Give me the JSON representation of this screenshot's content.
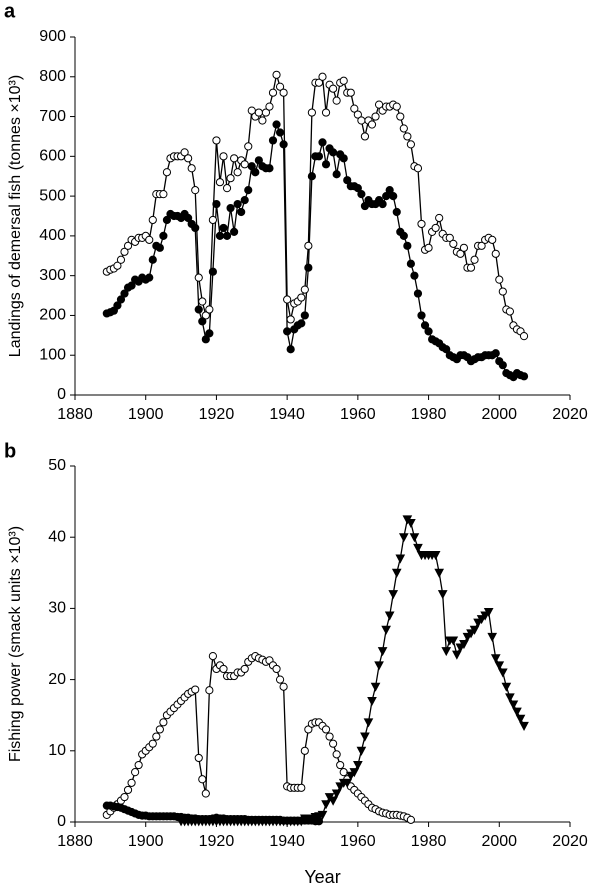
{
  "chart_data": [
    {
      "type": "line",
      "label": "a",
      "ylabel": "Landings of demersal fish (tonnes ×10³)",
      "xlim": [
        1880,
        2020
      ],
      "xticks": [
        1880,
        1900,
        1920,
        1940,
        1960,
        1980,
        2000,
        2020
      ],
      "ylim": [
        0,
        900
      ],
      "yticks": [
        0,
        100,
        200,
        300,
        400,
        500,
        600,
        700,
        800,
        900
      ],
      "x": [
        1889,
        1890,
        1891,
        1892,
        1893,
        1894,
        1895,
        1896,
        1897,
        1898,
        1899,
        1900,
        1901,
        1902,
        1903,
        1904,
        1905,
        1906,
        1907,
        1908,
        1909,
        1910,
        1911,
        1912,
        1913,
        1914,
        1915,
        1916,
        1917,
        1918,
        1919,
        1920,
        1921,
        1922,
        1923,
        1924,
        1925,
        1926,
        1927,
        1928,
        1929,
        1930,
        1931,
        1932,
        1933,
        1934,
        1935,
        1936,
        1937,
        1938,
        1939,
        1940,
        1941,
        1942,
        1943,
        1944,
        1945,
        1946,
        1947,
        1948,
        1949,
        1950,
        1951,
        1952,
        1953,
        1954,
        1955,
        1956,
        1957,
        1958,
        1959,
        1960,
        1961,
        1962,
        1963,
        1964,
        1965,
        1966,
        1967,
        1968,
        1969,
        1970,
        1971,
        1972,
        1973,
        1974,
        1975,
        1976,
        1977,
        1978,
        1979,
        1980,
        1981,
        1982,
        1983,
        1984,
        1985,
        1986,
        1987,
        1988,
        1989,
        1990,
        1991,
        1992,
        1993,
        1994,
        1995,
        1996,
        1997,
        1998,
        1999,
        2000,
        2001,
        2002,
        2003,
        2004,
        2005,
        2006,
        2007
      ],
      "series": [
        {
          "marker": "circle-open",
          "color": "#000000",
          "values": [
            310,
            315,
            318,
            325,
            340,
            360,
            375,
            390,
            385,
            395,
            395,
            400,
            390,
            440,
            505,
            505,
            505,
            560,
            595,
            600,
            600,
            600,
            610,
            595,
            570,
            515,
            295,
            235,
            200,
            215,
            440,
            640,
            535,
            600,
            520,
            545,
            595,
            560,
            590,
            580,
            625,
            715,
            700,
            710,
            690,
            710,
            725,
            760,
            805,
            775,
            760,
            240,
            190,
            230,
            235,
            245,
            265,
            375,
            710,
            785,
            785,
            800,
            710,
            780,
            770,
            740,
            785,
            790,
            760,
            760,
            720,
            705,
            690,
            650,
            690,
            680,
            700,
            730,
            715,
            725,
            725,
            730,
            725,
            700,
            670,
            650,
            630,
            575,
            570,
            430,
            365,
            370,
            410,
            420,
            445,
            405,
            395,
            395,
            380,
            360,
            355,
            370,
            320,
            320,
            340,
            375,
            375,
            390,
            395,
            390,
            355,
            290,
            260,
            215,
            210,
            175,
            165,
            160,
            148
          ]
        },
        {
          "marker": "circle",
          "color": "#000000",
          "values": [
            205,
            208,
            212,
            225,
            240,
            255,
            270,
            275,
            290,
            285,
            295,
            290,
            295,
            340,
            375,
            370,
            400,
            440,
            455,
            450,
            450,
            445,
            455,
            445,
            430,
            420,
            215,
            185,
            140,
            155,
            310,
            480,
            400,
            420,
            400,
            470,
            410,
            480,
            460,
            490,
            515,
            575,
            560,
            590,
            575,
            570,
            570,
            640,
            680,
            660,
            630,
            160,
            115,
            165,
            175,
            180,
            200,
            320,
            550,
            600,
            600,
            635,
            580,
            620,
            610,
            555,
            605,
            595,
            540,
            525,
            525,
            520,
            505,
            475,
            490,
            480,
            480,
            490,
            480,
            500,
            515,
            500,
            460,
            410,
            400,
            375,
            330,
            300,
            255,
            200,
            175,
            160,
            140,
            135,
            130,
            120,
            115,
            100,
            95,
            90,
            100,
            100,
            95,
            85,
            90,
            95,
            95,
            100,
            100,
            100,
            105,
            85,
            75,
            55,
            50,
            45,
            55,
            50,
            47
          ]
        }
      ]
    },
    {
      "type": "line",
      "label": "b",
      "ylabel": "Fishing power (smack units ×10³)",
      "xlabel": "Year",
      "xlim": [
        1880,
        2020
      ],
      "xticks": [
        1880,
        1900,
        1920,
        1940,
        1960,
        1980,
        2000,
        2020
      ],
      "ylim": [
        0,
        50
      ],
      "yticks": [
        0,
        10,
        20,
        30,
        40,
        50
      ],
      "x": [
        1889,
        1890,
        1891,
        1892,
        1893,
        1894,
        1895,
        1896,
        1897,
        1898,
        1899,
        1900,
        1901,
        1902,
        1903,
        1904,
        1905,
        1906,
        1907,
        1908,
        1909,
        1910,
        1911,
        1912,
        1913,
        1914,
        1915,
        1916,
        1917,
        1918,
        1919,
        1920,
        1921,
        1922,
        1923,
        1924,
        1925,
        1926,
        1927,
        1928,
        1929,
        1930,
        1931,
        1932,
        1933,
        1934,
        1935,
        1936,
        1937,
        1938,
        1939,
        1940,
        1941,
        1942,
        1943,
        1944,
        1945,
        1946,
        1947,
        1948,
        1949,
        1950,
        1951,
        1952,
        1953,
        1954,
        1955,
        1956,
        1957,
        1958,
        1959,
        1960,
        1961,
        1962,
        1963,
        1964,
        1965,
        1966,
        1967,
        1968,
        1969,
        1970,
        1971,
        1972,
        1973,
        1974,
        1975,
        1976,
        1977,
        1978,
        1979,
        1980,
        1981,
        1982,
        1983,
        1984,
        1985,
        1986,
        1987,
        1988,
        1989,
        1990,
        1991,
        1992,
        1993,
        1994,
        1995,
        1996,
        1997,
        1998,
        1999,
        2000,
        2001,
        2002,
        2003,
        2004,
        2005,
        2006,
        2007
      ],
      "series": [
        {
          "marker": "circle-open",
          "color": "#000000",
          "values": [
            1,
            1.5,
            2,
            2.5,
            3,
            3.5,
            4.5,
            5.5,
            7,
            8,
            9.5,
            10,
            10.5,
            11,
            12,
            13,
            14,
            15,
            15.5,
            16,
            16.5,
            17,
            17.5,
            18,
            18.3,
            18.6,
            9,
            6,
            4,
            18.5,
            23.3,
            21.5,
            22,
            21.5,
            20.5,
            20.5,
            20.5,
            21,
            21,
            21.5,
            22.5,
            23,
            23.3,
            23,
            22.8,
            22.5,
            22.7,
            22,
            21.5,
            20,
            19,
            5,
            4.8,
            4.8,
            4.8,
            4.8,
            10,
            13,
            13.8,
            14,
            14,
            13.5,
            13,
            12,
            11,
            9.5,
            8,
            7,
            6,
            5,
            4.5,
            4,
            3.5,
            3,
            2.5,
            2,
            1.8,
            1.5,
            1.3,
            1.2,
            1,
            1,
            1,
            0.9,
            0.8,
            0.6,
            0.3,
            null,
            null,
            null,
            null,
            null,
            null,
            null,
            null,
            null,
            null,
            null,
            null,
            null,
            null,
            null,
            null,
            null,
            null,
            null,
            null,
            null,
            null,
            null,
            null,
            null,
            null,
            null,
            null,
            null,
            null,
            null,
            null
          ]
        },
        {
          "marker": "circle",
          "color": "#000000",
          "values": [
            2.3,
            2.3,
            2.2,
            2.1,
            2.0,
            1.8,
            1.6,
            1.4,
            1.2,
            1.0,
            0.9,
            0.9,
            0.8,
            0.8,
            0.8,
            0.8,
            0.8,
            0.8,
            0.8,
            0.8,
            0.7,
            0.7,
            0.6,
            0.6,
            0.5,
            0.5,
            0.4,
            0.4,
            0.4,
            0.4,
            0.5,
            0.6,
            0.5,
            0.5,
            0.4,
            0.4,
            0.4,
            0.4,
            0.4,
            0.4,
            0.3,
            0.3,
            0.3,
            0.3,
            0.3,
            0.3,
            0.3,
            0.3,
            0.3,
            0.3,
            0.2,
            0.2,
            0.2,
            0.2,
            0.2,
            0.2,
            0.2,
            0.2,
            0.2,
            0.1,
            0.1,
            null,
            null,
            null,
            null,
            null,
            null,
            null,
            null,
            null,
            null,
            null,
            null,
            null,
            null,
            null,
            null,
            null,
            null,
            null,
            null,
            null,
            null,
            null,
            null,
            null,
            null,
            null,
            null,
            null,
            null,
            null,
            null,
            null,
            null,
            null,
            null,
            null,
            null,
            null,
            null,
            null,
            null,
            null,
            null,
            null,
            null,
            null,
            null,
            null,
            null,
            null,
            null,
            null,
            null,
            null,
            null,
            null,
            null
          ]
        },
        {
          "marker": "triangle",
          "color": "#000000",
          "values": [
            null,
            null,
            null,
            null,
            null,
            null,
            null,
            null,
            null,
            null,
            null,
            null,
            null,
            null,
            null,
            null,
            null,
            null,
            null,
            null,
            null,
            0.1,
            0.1,
            0.1,
            0.1,
            0.1,
            0.1,
            0.1,
            0.1,
            0.1,
            0.1,
            0.1,
            0.1,
            0.1,
            0.1,
            0.1,
            0.1,
            0.1,
            0.1,
            0.1,
            0.1,
            0.1,
            0.1,
            0.1,
            0.1,
            0.1,
            0.1,
            0.1,
            0.1,
            0.1,
            0.1,
            0.1,
            0.1,
            0.1,
            0.1,
            0.1,
            0.5,
            0.5,
            0.5,
            0.7,
            0.8,
            1.0,
            2.5,
            3.5,
            3,
            4,
            5,
            5.5,
            5.5,
            6.5,
            7,
            8,
            10,
            12,
            14,
            17,
            19,
            22,
            24,
            27,
            29,
            32,
            35,
            37,
            40,
            42.5,
            42,
            40,
            38.5,
            37.5,
            37.5,
            37.5,
            37.5,
            37.5,
            35,
            32,
            24,
            25.5,
            25.5,
            23.5,
            24.5,
            25,
            26,
            26.5,
            27,
            28,
            28.5,
            29,
            29.5,
            26,
            23,
            22,
            21,
            19,
            17.5,
            16.5,
            15.5,
            14.5,
            13.5
          ]
        }
      ]
    }
  ]
}
